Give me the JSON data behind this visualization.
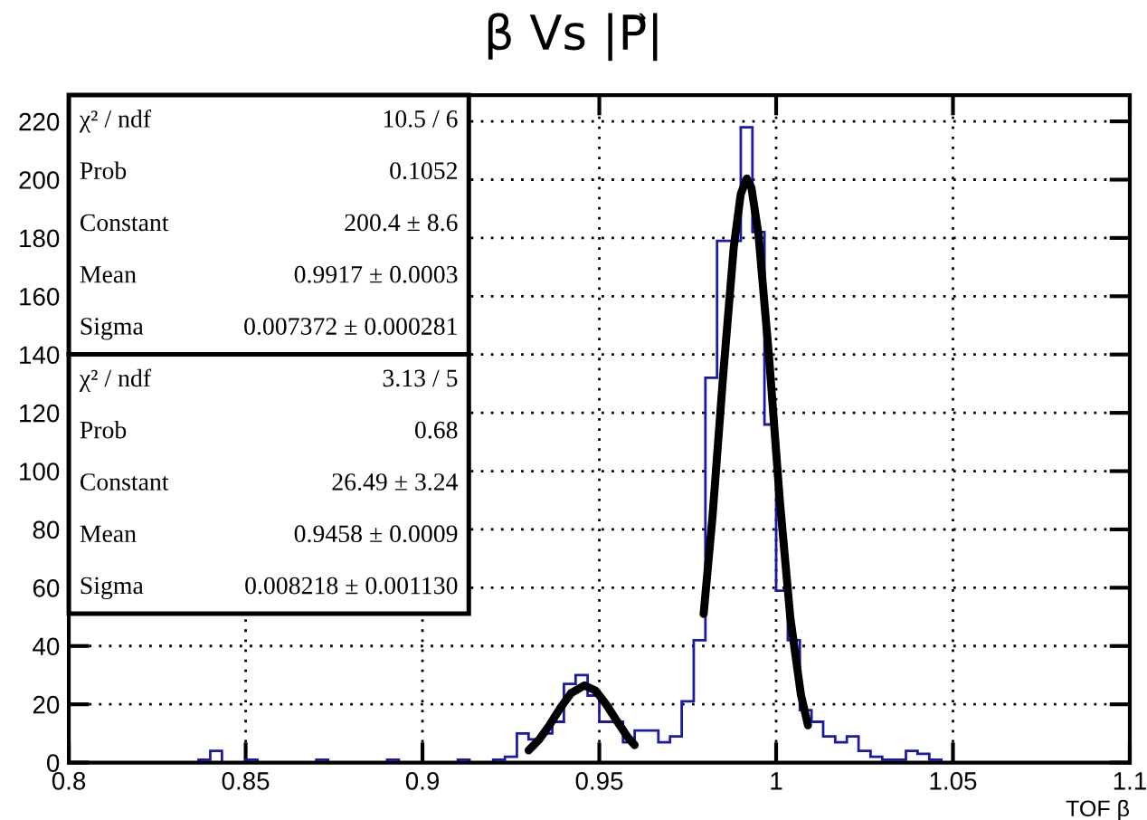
{
  "chart_data": {
    "type": "histogram",
    "title": "β Vs |P⃗|",
    "xlabel": "TOF β",
    "bins": [
      0.8,
      0.8033,
      0.8067,
      0.81,
      0.8133,
      0.8167,
      0.82,
      0.8233,
      0.8267,
      0.83,
      0.8333,
      0.8367,
      0.84,
      0.8433,
      0.8467,
      0.85,
      0.8533,
      0.8567,
      0.86,
      0.8633,
      0.8667,
      0.87,
      0.8733,
      0.8767,
      0.88,
      0.8833,
      0.8867,
      0.89,
      0.8933,
      0.8967,
      0.9,
      0.9033,
      0.9067,
      0.91,
      0.9133,
      0.9167,
      0.92,
      0.9233,
      0.9267,
      0.93,
      0.9333,
      0.9367,
      0.94,
      0.9433,
      0.9467,
      0.95,
      0.9533,
      0.9567,
      0.96,
      0.9633,
      0.9667,
      0.97,
      0.9733,
      0.9767,
      0.98,
      0.9833,
      0.9867,
      0.99,
      0.9933,
      0.9967,
      1.0,
      1.0033,
      1.0067,
      1.01,
      1.0133,
      1.0167,
      1.02,
      1.0233,
      1.0267,
      1.03,
      1.0333,
      1.0367,
      1.04,
      1.0433,
      1.0467,
      1.05,
      1.0533,
      1.0567,
      1.06,
      1.0633,
      1.0667,
      1.07,
      1.0733,
      1.0767,
      1.08,
      1.0833,
      1.0867,
      1.09,
      1.0933,
      1.0967,
      1.1
    ],
    "values": [
      0,
      0,
      0,
      0,
      0,
      0,
      0,
      0,
      0,
      0,
      0,
      1,
      4,
      0,
      0,
      1,
      0,
      0,
      0,
      0,
      0,
      1,
      0,
      0,
      0,
      0,
      0,
      1,
      0,
      0,
      0,
      0,
      0,
      1,
      0,
      0,
      1,
      2,
      10,
      8,
      10,
      14,
      27,
      30,
      23,
      14,
      14,
      7,
      11,
      11,
      7,
      9,
      21,
      42,
      132,
      179,
      179,
      218,
      182,
      116,
      59,
      42,
      18,
      14,
      9,
      7,
      9,
      4,
      2,
      1,
      1,
      4,
      3,
      1,
      0,
      0,
      0,
      0,
      0,
      0,
      0,
      0,
      0,
      0,
      0,
      0,
      0,
      0,
      0,
      0
    ],
    "color": "#1a1aa6",
    "series": [
      {
        "type": "line",
        "color": "#000000",
        "x": [
          0.9795,
          0.982,
          0.985,
          0.988,
          0.99,
          0.9917,
          0.993,
          0.995,
          0.998,
          1.001,
          1.004,
          1.007,
          1.009
        ],
        "values": [
          51,
          84.3,
          132.6,
          176.7,
          195.1,
          200.4,
          197.3,
          181.3,
          139.1,
          90.4,
          49.8,
          23.3,
          12.8
        ]
      },
      {
        "type": "line",
        "color": "#000000",
        "x": [
          0.93,
          0.933,
          0.936,
          0.939,
          0.942,
          0.9458,
          0.949,
          0.952,
          0.955,
          0.958,
          0.96
        ],
        "values": [
          4.2,
          7.9,
          13.0,
          18.8,
          23.8,
          26.5,
          24.6,
          19.9,
          14.2,
          8.8,
          6.0
        ]
      }
    ],
    "xlim": [
      0.8,
      1.1
    ],
    "ylim": [
      0,
      229
    ],
    "xticks": [
      0.8,
      0.85,
      0.9,
      0.95,
      1,
      1.05,
      1.1
    ],
    "yticks": [
      0,
      20,
      40,
      60,
      80,
      100,
      120,
      140,
      160,
      180,
      200,
      220
    ],
    "grid": true,
    "legend": false,
    "annotations": [
      "χ² / ndf",
      "10.5 / 6",
      "Prob",
      "0.1052",
      "Constant",
      "200.4 ± 8.6",
      "Mean",
      "0.9917 ± 0.0003",
      "Sigma",
      "0.007372 ± 0.000281",
      "χ² / ndf",
      "3.13 / 5",
      "Prob",
      "0.68",
      "Constant",
      "26.49 ± 3.24",
      "Mean",
      "0.9458 ± 0.0009",
      "Sigma",
      "0.008218 ± 0.001130"
    ]
  }
}
